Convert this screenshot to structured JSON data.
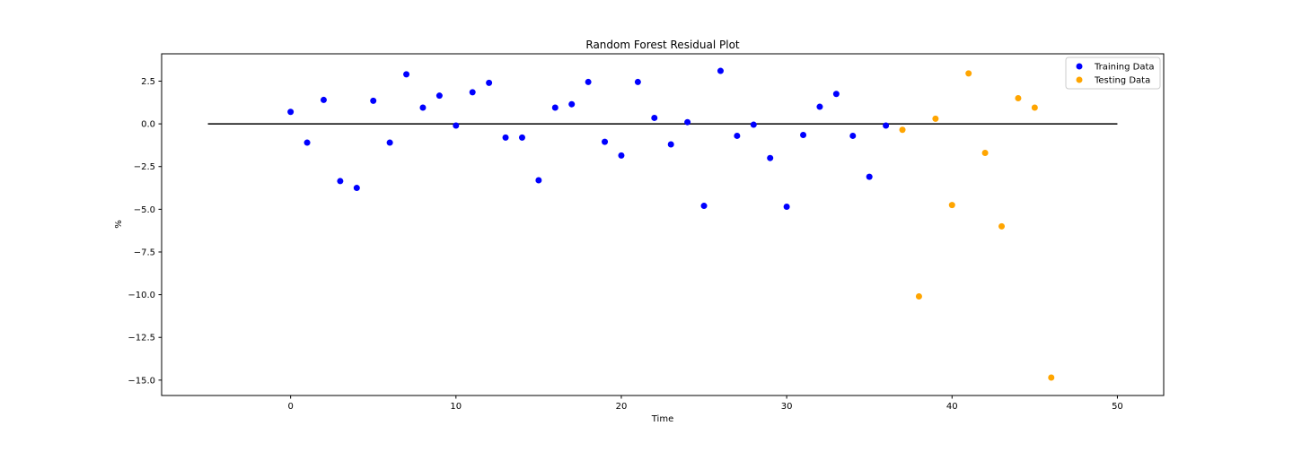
{
  "chart_data": {
    "type": "scatter",
    "title": "Random Forest Residual Plot",
    "xlabel": "Time",
    "ylabel": "%",
    "xlim": [
      -7.8,
      52.8
    ],
    "ylim": [
      -15.9,
      4.1
    ],
    "xticks": [
      0,
      10,
      20,
      30,
      40,
      50
    ],
    "yticks": [
      2.5,
      0.0,
      -2.5,
      -5.0,
      -7.5,
      -10.0,
      -12.5,
      -15.0
    ],
    "ytick_labels": [
      "2.5",
      "0.0",
      "−2.5",
      "−5.0",
      "−7.5",
      "−10.0",
      "−12.5",
      "−15.0"
    ],
    "grid": false,
    "legend_position": "top-right",
    "hline": {
      "y": 0,
      "xmin": -5,
      "xmax": 50,
      "color": "#000000"
    },
    "series": [
      {
        "name": "Training Data",
        "color": "#0000ff",
        "x": [
          0,
          1,
          2,
          3,
          4,
          5,
          6,
          7,
          8,
          9,
          10,
          11,
          12,
          13,
          14,
          15,
          16,
          17,
          18,
          19,
          20,
          21,
          22,
          23,
          24,
          25,
          26,
          27,
          28,
          29,
          30,
          31,
          32,
          33,
          34,
          35,
          36
        ],
        "y": [
          0.7,
          -1.1,
          1.4,
          -3.35,
          -3.75,
          1.35,
          -1.1,
          2.9,
          0.95,
          1.65,
          -0.1,
          1.85,
          2.4,
          -0.8,
          -0.8,
          -3.3,
          0.95,
          1.15,
          2.45,
          -1.05,
          -1.85,
          2.45,
          0.35,
          -1.2,
          0.1,
          -4.8,
          3.1,
          -0.7,
          -0.05,
          -2.0,
          -4.85,
          -0.65,
          1.0,
          1.75,
          -0.7,
          -3.1,
          -0.1
        ]
      },
      {
        "name": "Testing Data",
        "color": "#ffa500",
        "x": [
          37,
          38,
          39,
          40,
          41,
          42,
          43,
          44,
          45,
          46
        ],
        "y": [
          -0.35,
          -10.1,
          0.3,
          -4.75,
          2.95,
          -1.7,
          -6.0,
          1.5,
          0.95,
          -14.85
        ]
      }
    ]
  }
}
